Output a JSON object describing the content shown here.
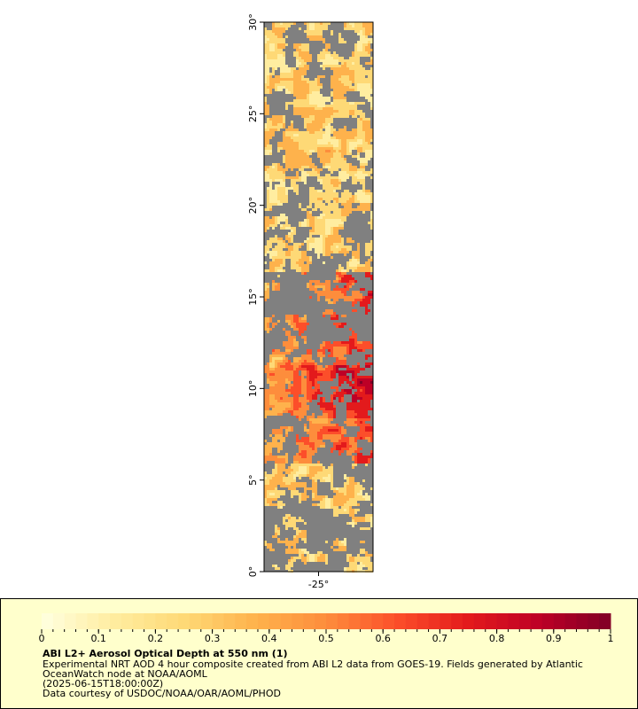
{
  "chart_data": {
    "type": "map",
    "ylim": [
      0,
      30
    ],
    "yticks": [
      {
        "value": 0,
        "label": "0°"
      },
      {
        "value": 5,
        "label": "5°"
      },
      {
        "value": 10,
        "label": "10°"
      },
      {
        "value": 15,
        "label": "15°"
      },
      {
        "value": 20,
        "label": "20°"
      },
      {
        "value": 25,
        "label": "25°"
      },
      {
        "value": 30,
        "label": "30°"
      }
    ],
    "xlim": [
      -28,
      -22
    ],
    "xticks": [
      {
        "value": -25,
        "label": "-25°"
      }
    ],
    "land_color": "#808080",
    "colorbar": {
      "range": [
        0,
        1
      ],
      "ticks": [
        0,
        0.1,
        0.2,
        0.3,
        0.4,
        0.5,
        0.6,
        0.7,
        0.8,
        0.9,
        1
      ],
      "minor_step": 0.02,
      "colors": [
        "#ffffe0",
        "#ffeda0",
        "#fed976",
        "#feb24c",
        "#fd8d3c",
        "#fc4e2a",
        "#e31a1c",
        "#bd0026",
        "#800026"
      ]
    },
    "title": "ABI L2+ Aerosol Optical Depth at 550 nm (1)",
    "description": [
      "Experimental NRT AOD 4 hour composite created from ABI L2 data from GOES-19. Fields generated by Atlantic",
      "OceanWatch node at NOAA/AOML",
      "(2025-06-15T18:00:00Z)",
      "Data courtesy of USDOC/NOAA/OAR/AOML/PHOD"
    ]
  }
}
